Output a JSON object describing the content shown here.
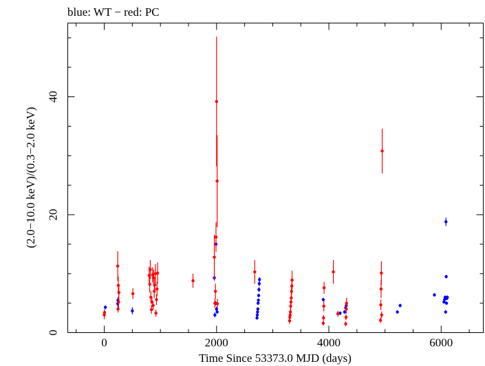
{
  "chart_data": {
    "type": "scatter",
    "title": "blue: WT − red: PC",
    "xlabel": "Time Since 53373.0 MJD (days)",
    "ylabel": "(2.0−10.0 keV)/(0.3−2.0 keV)",
    "xlim": [
      -650,
      6750
    ],
    "ylim": [
      0,
      52.5
    ],
    "xticks": [
      0,
      2000,
      4000,
      6000
    ],
    "xtick_labels": [
      "0",
      "2000",
      "4000",
      "6000"
    ],
    "yticks": [
      0,
      20,
      40
    ],
    "ytick_labels": [
      "0",
      "20",
      "40"
    ],
    "grid": false,
    "legend": "none",
    "series": [
      {
        "name": "WT",
        "color": "#0000ff",
        "points": [
          [
            20,
            4.3,
            0.3
          ],
          [
            240,
            4.9,
            0.5
          ],
          [
            245,
            5.5,
            0.5
          ],
          [
            250,
            5.2,
            0.5
          ],
          [
            500,
            3.7,
            0.6
          ],
          [
            1960,
            9.3,
            0.5
          ],
          [
            1970,
            3.0,
            0.4
          ],
          [
            1980,
            5.0,
            0.4
          ],
          [
            1990,
            15.0,
            0.6
          ],
          [
            2000,
            4.0,
            0.4
          ],
          [
            2010,
            3.5,
            0.3
          ],
          [
            2720,
            2.5,
            0.3
          ],
          [
            2725,
            3.0,
            0.3
          ],
          [
            2730,
            3.5,
            0.3
          ],
          [
            2735,
            4.0,
            0.3
          ],
          [
            2740,
            5.0,
            0.3
          ],
          [
            2745,
            5.5,
            0.3
          ],
          [
            2750,
            6.3,
            0.3
          ],
          [
            2755,
            7.3,
            0.4
          ],
          [
            2760,
            8.3,
            0.4
          ],
          [
            2765,
            9.0,
            0.4
          ],
          [
            3900,
            5.6,
            0.3
          ],
          [
            4200,
            3.3,
            0.3
          ],
          [
            4280,
            3.5,
            0.3
          ],
          [
            4300,
            4.2,
            0.3
          ],
          [
            4310,
            4.6,
            0.3
          ],
          [
            5220,
            3.5,
            0.3
          ],
          [
            5270,
            4.6,
            0.3
          ],
          [
            5880,
            6.4,
            0.3
          ],
          [
            6050,
            5.2,
            0.3
          ],
          [
            6060,
            5.6,
            0.3
          ],
          [
            6070,
            6.0,
            0.3
          ],
          [
            6080,
            3.5,
            0.3
          ],
          [
            6085,
            18.8,
            0.7
          ],
          [
            6090,
            9.5,
            0.3
          ],
          [
            6095,
            5.0,
            0.3
          ],
          [
            6100,
            5.8,
            0.3
          ],
          [
            6110,
            6.0,
            0.3
          ]
        ]
      },
      {
        "name": "PC",
        "color": "#ff0000",
        "points": [
          [
            0,
            3.0,
            0.7
          ],
          [
            5,
            3.4,
            0.6
          ],
          [
            240,
            11.3,
            2.5
          ],
          [
            245,
            4.0,
            0.6
          ],
          [
            250,
            8.0,
            1.5
          ],
          [
            255,
            5.2,
            1.0
          ],
          [
            260,
            6.8,
            1.2
          ],
          [
            510,
            6.6,
            0.9
          ],
          [
            800,
            9.7,
            1.5
          ],
          [
            810,
            8.2,
            1.4
          ],
          [
            820,
            10.7,
            1.6
          ],
          [
            830,
            6.0,
            1.0
          ],
          [
            840,
            3.9,
            0.7
          ],
          [
            850,
            5.2,
            0.9
          ],
          [
            860,
            9.8,
            1.3
          ],
          [
            870,
            4.6,
            0.7
          ],
          [
            880,
            9.3,
            1.4
          ],
          [
            890,
            7.0,
            1.1
          ],
          [
            900,
            8.1,
            1.3
          ],
          [
            910,
            10.0,
            1.6
          ],
          [
            920,
            3.3,
            0.6
          ],
          [
            930,
            5.6,
            0.9
          ],
          [
            940,
            7.4,
            1.2
          ],
          [
            950,
            10.1,
            1.8
          ],
          [
            1580,
            8.8,
            1.2
          ],
          [
            1960,
            12.8,
            3.8
          ],
          [
            1970,
            5.0,
            0.8
          ],
          [
            1980,
            7.0,
            1.3
          ],
          [
            1990,
            16.2,
            2.5
          ],
          [
            2000,
            39.2,
            11.0
          ],
          [
            2010,
            25.7,
            7.8
          ],
          [
            2015,
            4.9,
            0.8
          ],
          [
            2680,
            10.3,
            2.0
          ],
          [
            3300,
            2.0,
            0.5
          ],
          [
            3305,
            2.6,
            0.6
          ],
          [
            3310,
            3.0,
            0.6
          ],
          [
            3315,
            3.5,
            0.7
          ],
          [
            3320,
            4.5,
            0.8
          ],
          [
            3325,
            5.2,
            0.9
          ],
          [
            3330,
            5.9,
            1.0
          ],
          [
            3335,
            7.0,
            1.2
          ],
          [
            3340,
            7.9,
            1.3
          ],
          [
            3345,
            8.9,
            1.6
          ],
          [
            3900,
            1.6,
            0.4
          ],
          [
            3905,
            2.5,
            0.5
          ],
          [
            3910,
            4.5,
            0.9
          ],
          [
            3915,
            7.6,
            1.0
          ],
          [
            4080,
            10.3,
            2.0
          ],
          [
            4160,
            3.2,
            0.5
          ],
          [
            4300,
            1.5,
            0.4
          ],
          [
            4305,
            2.6,
            0.5
          ],
          [
            4310,
            4.0,
            0.8
          ],
          [
            4315,
            5.0,
            0.9
          ],
          [
            4920,
            2.1,
            0.5
          ],
          [
            4925,
            4.7,
            0.9
          ],
          [
            4930,
            7.4,
            1.5
          ],
          [
            4935,
            10.1,
            2.0
          ],
          [
            4940,
            3.0,
            0.6
          ],
          [
            4950,
            30.8,
            3.8
          ]
        ]
      }
    ]
  }
}
